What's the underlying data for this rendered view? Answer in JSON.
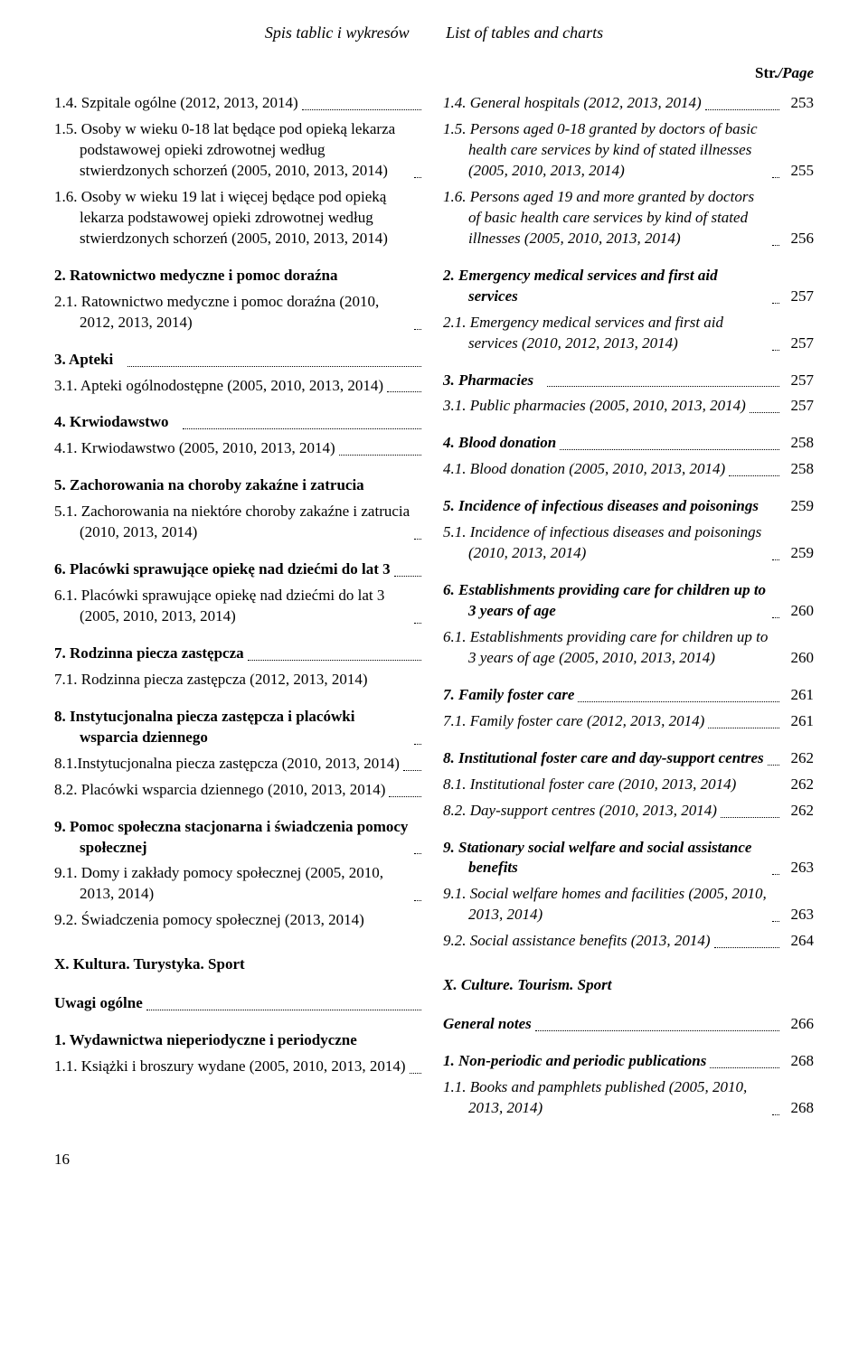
{
  "running_head": {
    "left_pl": "Spis tablic i wykresów",
    "right_en": "List of tables and charts"
  },
  "strpage": {
    "pl": "Str.",
    "en": "/Page"
  },
  "left": [
    {
      "type": "entry",
      "bold": false,
      "text": "1.4. Szpitale ogólne (2012, 2013, 2014)",
      "page": "",
      "lead": true
    },
    {
      "type": "entry",
      "bold": false,
      "text": "1.5. Osoby w wieku 0-18 lat będące pod opieką lekarza podstawowej opieki zdrowotnej według stwierdzonych schorzeń (2005, 2010, 2013, 2014)",
      "page": "",
      "lead": true
    },
    {
      "type": "entry",
      "bold": false,
      "text": "1.6. Osoby w wieku 19 lat i więcej będące pod opieką lekarza podstawowej opieki zdrowotnej według stwierdzonych schorzeń (2005, 2010, 2013, 2014)",
      "page": "",
      "lead": false,
      "nolead": true
    },
    {
      "type": "spacer"
    },
    {
      "type": "entry",
      "bold": true,
      "text": "2. Ratownictwo medyczne i pomoc doraźna",
      "page": "",
      "lead": false,
      "nolead": true
    },
    {
      "type": "entry",
      "bold": false,
      "text": "2.1. Ratownictwo medyczne i pomoc doraźna (2010, 2012, 2013, 2014)",
      "page": "",
      "lead": true
    },
    {
      "type": "spacer"
    },
    {
      "type": "entry",
      "bold": true,
      "text": "3. Apteki",
      "page": "",
      "lead": true
    },
    {
      "type": "entry",
      "bold": false,
      "text": "3.1. Apteki ogólnodostępne (2005, 2010, 2013, 2014)",
      "page": "",
      "lead": true
    },
    {
      "type": "spacer"
    },
    {
      "type": "entry",
      "bold": true,
      "text": "4. Krwiodawstwo",
      "page": "",
      "lead": true
    },
    {
      "type": "entry",
      "bold": false,
      "text": "4.1. Krwiodawstwo (2005, 2010, 2013, 2014)",
      "page": "",
      "lead": true
    },
    {
      "type": "spacer"
    },
    {
      "type": "entry",
      "bold": true,
      "text": "5. Zachorowania na choroby zakaźne i zatrucia",
      "page": "",
      "lead": false,
      "nolead": true
    },
    {
      "type": "entry",
      "bold": false,
      "text": "5.1. Zachorowania na niektóre choroby zakaźne i zatrucia (2010, 2013, 2014)",
      "page": "",
      "lead": true
    },
    {
      "type": "spacer"
    },
    {
      "type": "entry",
      "bold": true,
      "text": "6. Placówki sprawujące opiekę nad dziećmi do lat 3",
      "page": "",
      "lead": true
    },
    {
      "type": "entry",
      "bold": false,
      "text": "6.1. Placówki sprawujące opiekę nad dziećmi do lat 3 (2005, 2010, 2013, 2014)",
      "page": "",
      "lead": true
    },
    {
      "type": "spacer"
    },
    {
      "type": "entry",
      "bold": true,
      "text": "7. Rodzinna piecza zastępcza",
      "page": "",
      "lead": true
    },
    {
      "type": "entry",
      "bold": false,
      "text": "7.1. Rodzinna piecza zastępcza (2012, 2013, 2014)",
      "page": "",
      "lead": false,
      "nolead": true
    },
    {
      "type": "spacer"
    },
    {
      "type": "entry",
      "bold": true,
      "text": "8. Instytucjonalna piecza zastępcza i placówki wsparcia dziennego",
      "page": "",
      "lead": true
    },
    {
      "type": "entry",
      "bold": false,
      "text": "8.1.Instytucjonalna piecza zastępcza (2010, 2013, 2014)",
      "page": "",
      "lead": true
    },
    {
      "type": "entry",
      "bold": false,
      "text": "8.2. Placówki wsparcia dziennego (2010, 2013, 2014)",
      "page": "",
      "lead": true
    },
    {
      "type": "spacer"
    },
    {
      "type": "entry",
      "bold": true,
      "text": "9. Pomoc społeczna stacjonarna i świadczenia pomocy społecznej",
      "page": "",
      "lead": true
    },
    {
      "type": "entry",
      "bold": false,
      "text": "9.1. Domy i zakłady pomocy społecznej (2005, 2010, 2013, 2014)",
      "page": "",
      "lead": true
    },
    {
      "type": "entry",
      "bold": false,
      "text": "9.2. Świadczenia pomocy społecznej (2013, 2014)",
      "page": "",
      "lead": false,
      "nolead": true
    },
    {
      "type": "chapter",
      "text": "X. Kultura. Turystyka. Sport"
    },
    {
      "type": "entry",
      "bold": true,
      "text": "Uwagi ogólne",
      "page": "",
      "lead": true
    },
    {
      "type": "spacer"
    },
    {
      "type": "entry",
      "bold": true,
      "text": "1. Wydawnictwa nieperiodyczne i periodyczne",
      "page": "",
      "lead": false,
      "nolead": true
    },
    {
      "type": "entry",
      "bold": false,
      "text": "1.1. Książki i broszury wydane (2005, 2010, 2013, 2014)",
      "page": "",
      "lead": true
    }
  ],
  "right": [
    {
      "type": "entry",
      "bold": false,
      "text": "1.4. General hospitals (2012, 2013, 2014)",
      "page": "253",
      "lead": true
    },
    {
      "type": "entry",
      "bold": false,
      "text": "1.5. Persons aged 0-18 granted by doctors of basic health care services by kind of stated illnesses (2005, 2010, 2013, 2014)",
      "page": "255",
      "lead": true
    },
    {
      "type": "entry",
      "bold": false,
      "text": "1.6. Persons aged 19 and more granted by doctors of basic health care services by kind of stated illnesses (2005, 2010, 2013, 2014)",
      "page": "256",
      "lead": true
    },
    {
      "type": "spacer"
    },
    {
      "type": "entry",
      "bold": true,
      "text": "2. Emergency medical services and first aid services",
      "page": "257",
      "lead": true
    },
    {
      "type": "entry",
      "bold": false,
      "text": "2.1. Emergency medical services and first aid services (2010, 2012, 2013, 2014)",
      "page": "257",
      "lead": true
    },
    {
      "type": "spacer"
    },
    {
      "type": "entry",
      "bold": true,
      "text": "3. Pharmacies",
      "page": "257",
      "lead": true
    },
    {
      "type": "entry",
      "bold": false,
      "text": "3.1. Public pharmacies (2005, 2010, 2013, 2014)",
      "page": "257",
      "lead": true
    },
    {
      "type": "spacer"
    },
    {
      "type": "entry",
      "bold": true,
      "text": "4. Blood donation",
      "page": "258",
      "lead": true
    },
    {
      "type": "entry",
      "bold": false,
      "text": "4.1. Blood donation (2005, 2010, 2013, 2014)",
      "page": "258",
      "lead": true
    },
    {
      "type": "spacer"
    },
    {
      "type": "entry",
      "bold": true,
      "text": "5. Incidence of infectious diseases and poisonings",
      "page": "259",
      "lead": false,
      "nolead": true
    },
    {
      "type": "entry",
      "bold": false,
      "text": "5.1. Incidence of infectious diseases and poisonings (2010, 2013, 2014)",
      "page": "259",
      "lead": true
    },
    {
      "type": "spacer"
    },
    {
      "type": "entry",
      "bold": true,
      "text": "6. Establishments providing care for children up to 3 years of age",
      "page": "260",
      "lead": true
    },
    {
      "type": "entry",
      "bold": false,
      "text": "6.1. Establishments providing care for children up to 3 years of age (2005, 2010, 2013, 2014)",
      "page": "260",
      "lead": false,
      "nolead": true
    },
    {
      "type": "spacer"
    },
    {
      "type": "entry",
      "bold": true,
      "text": "7. Family foster care",
      "page": "261",
      "lead": true
    },
    {
      "type": "entry",
      "bold": false,
      "text": "7.1. Family foster care (2012, 2013, 2014)",
      "page": "261",
      "lead": true
    },
    {
      "type": "spacer"
    },
    {
      "type": "entry",
      "bold": true,
      "text": "8. Institutional foster care and day-support centres",
      "page": "262",
      "lead": true
    },
    {
      "type": "entry",
      "bold": false,
      "text": "8.1. Institutional foster care (2010, 2013, 2014)",
      "page": "262",
      "lead": false,
      "nolead": true
    },
    {
      "type": "entry",
      "bold": false,
      "text": "8.2. Day-support centres (2010, 2013, 2014)",
      "page": "262",
      "lead": true
    },
    {
      "type": "spacer"
    },
    {
      "type": "entry",
      "bold": true,
      "text": "9. Stationary social welfare and social assistance benefits",
      "page": "263",
      "lead": true
    },
    {
      "type": "entry",
      "bold": false,
      "text": "9.1. Social welfare homes and facilities (2005, 2010, 2013, 2014)",
      "page": "263",
      "lead": true
    },
    {
      "type": "entry",
      "bold": false,
      "text": "9.2. Social assistance benefits (2013, 2014)",
      "page": "264",
      "lead": true
    },
    {
      "type": "chapter",
      "text": "X. Culture. Tourism. Sport"
    },
    {
      "type": "entry",
      "bold": true,
      "text": "General notes",
      "page": "266",
      "lead": true
    },
    {
      "type": "spacer"
    },
    {
      "type": "entry",
      "bold": true,
      "text": "1. Non-periodic and periodic publications",
      "page": "268",
      "lead": true
    },
    {
      "type": "entry",
      "bold": false,
      "text": "1.1. Books and pamphlets published (2005, 2010, 2013, 2014)",
      "page": "268",
      "lead": true
    }
  ],
  "footer_page_number": "16"
}
